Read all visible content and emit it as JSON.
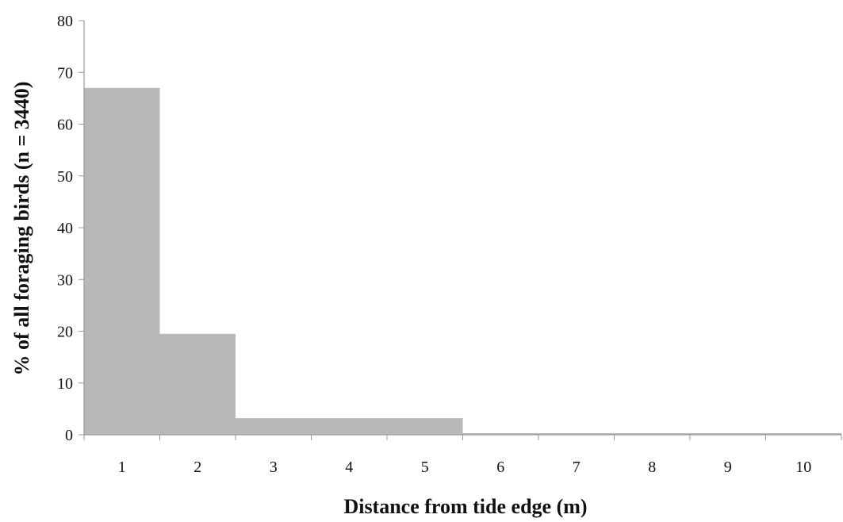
{
  "chart_data": {
    "type": "bar",
    "categories": [
      "1",
      "2",
      "3",
      "4",
      "5",
      "6",
      "7",
      "8",
      "9",
      "10"
    ],
    "values": [
      67,
      19.5,
      3.2,
      3.2,
      3.2,
      0.3,
      0.3,
      0.3,
      0.3,
      0.3
    ],
    "xlabel": "Distance from tide edge (m)",
    "ylabel": "% of all foraging birds (n = 3440)",
    "ylim": [
      0,
      80
    ],
    "yticks": [
      "0",
      "10",
      "20",
      "30",
      "40",
      "50",
      "60",
      "70",
      "80"
    ],
    "grid": false,
    "bar_color": "#b8b8b8",
    "axis_color": "#999999"
  }
}
